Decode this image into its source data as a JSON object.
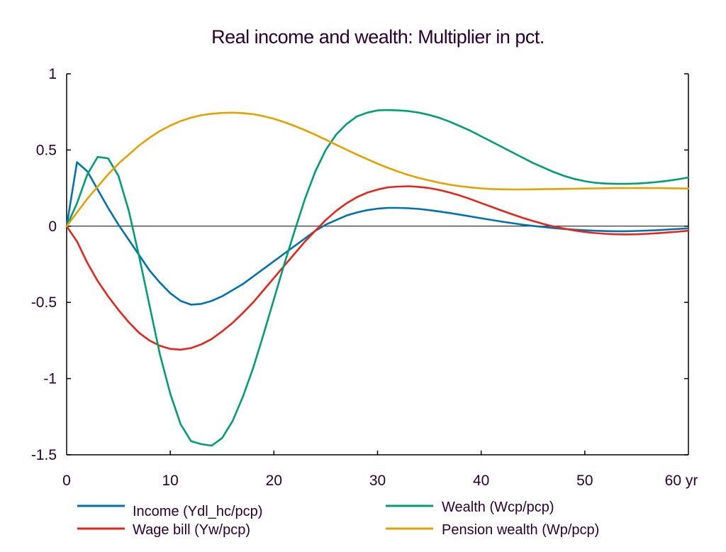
{
  "chart_data": {
    "type": "line",
    "title": "Real income and wealth: Multiplier in pct.",
    "xlabel": "yr",
    "ylabel": "",
    "xlim": [
      0,
      60
    ],
    "ylim": [
      -1.5,
      1
    ],
    "x_ticks": [
      0,
      10,
      20,
      30,
      40,
      50,
      60
    ],
    "x_tick_labels": [
      "0",
      "10",
      "20",
      "30",
      "40",
      "50",
      "60 yr"
    ],
    "y_ticks": [
      1,
      0.5,
      0,
      -0.5,
      -1,
      -1.5
    ],
    "y_tick_labels": [
      "1",
      "0.5",
      "0",
      "-0.5",
      "-1",
      "-1.5"
    ],
    "grid": false,
    "zero_line": true,
    "legend_position": "bottom",
    "series": [
      {
        "name": "Income (Ydl_hc/pcp)",
        "color": "#0072b2",
        "x": [
          0,
          1,
          2,
          3,
          4,
          5,
          6,
          7,
          8,
          9,
          10,
          11,
          12,
          13,
          14,
          15,
          16,
          17,
          18,
          19,
          20,
          21,
          22,
          23,
          24,
          25,
          26,
          27,
          28,
          29,
          30,
          31,
          32,
          33,
          34,
          35,
          36,
          37,
          38,
          39,
          40,
          41,
          42,
          43,
          44,
          45,
          46,
          47,
          48,
          49,
          50,
          51,
          52,
          53,
          54,
          55,
          56,
          57,
          58,
          59,
          60
        ],
        "values": [
          0,
          0.42,
          0.36,
          0.24,
          0.12,
          0.01,
          -0.09,
          -0.19,
          -0.29,
          -0.37,
          -0.44,
          -0.49,
          -0.515,
          -0.51,
          -0.49,
          -0.46,
          -0.42,
          -0.38,
          -0.33,
          -0.28,
          -0.23,
          -0.18,
          -0.13,
          -0.08,
          -0.03,
          0.01,
          0.04,
          0.07,
          0.09,
          0.105,
          0.115,
          0.12,
          0.12,
          0.118,
          0.113,
          0.105,
          0.096,
          0.086,
          0.075,
          0.064,
          0.052,
          0.041,
          0.03,
          0.02,
          0.01,
          0.002,
          -0.005,
          -0.012,
          -0.018,
          -0.023,
          -0.027,
          -0.03,
          -0.032,
          -0.033,
          -0.033,
          -0.031,
          -0.029,
          -0.026,
          -0.022,
          -0.018,
          -0.014
        ]
      },
      {
        "name": "Wage bill (Yw/pcp)",
        "color": "#e8251a",
        "x": [
          0,
          1,
          2,
          3,
          4,
          5,
          6,
          7,
          8,
          9,
          10,
          11,
          12,
          13,
          14,
          15,
          16,
          17,
          18,
          19,
          20,
          21,
          22,
          23,
          24,
          25,
          26,
          27,
          28,
          29,
          30,
          31,
          32,
          33,
          34,
          35,
          36,
          37,
          38,
          39,
          40,
          41,
          42,
          43,
          44,
          45,
          46,
          47,
          48,
          49,
          50,
          51,
          52,
          53,
          54,
          55,
          56,
          57,
          58,
          59,
          60
        ],
        "values": [
          0,
          -0.1,
          -0.24,
          -0.36,
          -0.46,
          -0.55,
          -0.63,
          -0.7,
          -0.75,
          -0.785,
          -0.805,
          -0.81,
          -0.8,
          -0.775,
          -0.74,
          -0.69,
          -0.635,
          -0.57,
          -0.5,
          -0.42,
          -0.34,
          -0.26,
          -0.18,
          -0.1,
          -0.03,
          0.04,
          0.1,
          0.15,
          0.19,
          0.22,
          0.24,
          0.255,
          0.26,
          0.262,
          0.258,
          0.25,
          0.237,
          0.22,
          0.2,
          0.177,
          0.152,
          0.127,
          0.102,
          0.078,
          0.055,
          0.034,
          0.015,
          -0.002,
          -0.016,
          -0.028,
          -0.038,
          -0.045,
          -0.05,
          -0.053,
          -0.054,
          -0.053,
          -0.05,
          -0.046,
          -0.041,
          -0.036,
          -0.03
        ]
      },
      {
        "name": "Wealth (Wcp/pcp)",
        "color": "#009e73",
        "x": [
          0,
          1,
          2,
          3,
          4,
          5,
          6,
          7,
          8,
          9,
          10,
          11,
          12,
          13,
          14,
          15,
          16,
          17,
          18,
          19,
          20,
          21,
          22,
          23,
          24,
          25,
          26,
          27,
          28,
          29,
          30,
          31,
          32,
          33,
          34,
          35,
          36,
          37,
          38,
          39,
          40,
          41,
          42,
          43,
          44,
          45,
          46,
          47,
          48,
          49,
          50,
          51,
          52,
          53,
          54,
          55,
          56,
          57,
          58,
          59,
          60
        ],
        "values": [
          0,
          0.15,
          0.34,
          0.455,
          0.445,
          0.33,
          0.1,
          -0.2,
          -0.52,
          -0.84,
          -1.1,
          -1.3,
          -1.41,
          -1.43,
          -1.44,
          -1.39,
          -1.28,
          -1.12,
          -0.93,
          -0.71,
          -0.48,
          -0.25,
          -0.03,
          0.18,
          0.36,
          0.5,
          0.6,
          0.67,
          0.72,
          0.745,
          0.76,
          0.762,
          0.76,
          0.755,
          0.745,
          0.73,
          0.71,
          0.685,
          0.655,
          0.625,
          0.59,
          0.555,
          0.52,
          0.485,
          0.45,
          0.415,
          0.385,
          0.355,
          0.33,
          0.31,
          0.295,
          0.285,
          0.28,
          0.278,
          0.278,
          0.28,
          0.284,
          0.29,
          0.298,
          0.308,
          0.32
        ]
      },
      {
        "name": "Pension wealth (Wp/pcp)",
        "color": "#e5a100",
        "x": [
          0,
          1,
          2,
          3,
          4,
          5,
          6,
          7,
          8,
          9,
          10,
          11,
          12,
          13,
          14,
          15,
          16,
          17,
          18,
          19,
          20,
          21,
          22,
          23,
          24,
          25,
          26,
          27,
          28,
          29,
          30,
          31,
          32,
          33,
          34,
          35,
          36,
          37,
          38,
          39,
          40,
          41,
          42,
          43,
          44,
          45,
          46,
          47,
          48,
          49,
          50,
          51,
          52,
          53,
          54,
          55,
          56,
          57,
          58,
          59,
          60
        ],
        "values": [
          0,
          0.09,
          0.18,
          0.26,
          0.34,
          0.41,
          0.47,
          0.53,
          0.58,
          0.625,
          0.66,
          0.69,
          0.712,
          0.728,
          0.738,
          0.743,
          0.745,
          0.742,
          0.735,
          0.722,
          0.705,
          0.683,
          0.658,
          0.63,
          0.6,
          0.568,
          0.535,
          0.502,
          0.47,
          0.44,
          0.41,
          0.383,
          0.358,
          0.335,
          0.316,
          0.3,
          0.285,
          0.272,
          0.262,
          0.254,
          0.248,
          0.244,
          0.242,
          0.241,
          0.241,
          0.242,
          0.243,
          0.244,
          0.245,
          0.246,
          0.247,
          0.248,
          0.249,
          0.25,
          0.25,
          0.25,
          0.25,
          0.25,
          0.249,
          0.248,
          0.247
        ]
      }
    ]
  }
}
